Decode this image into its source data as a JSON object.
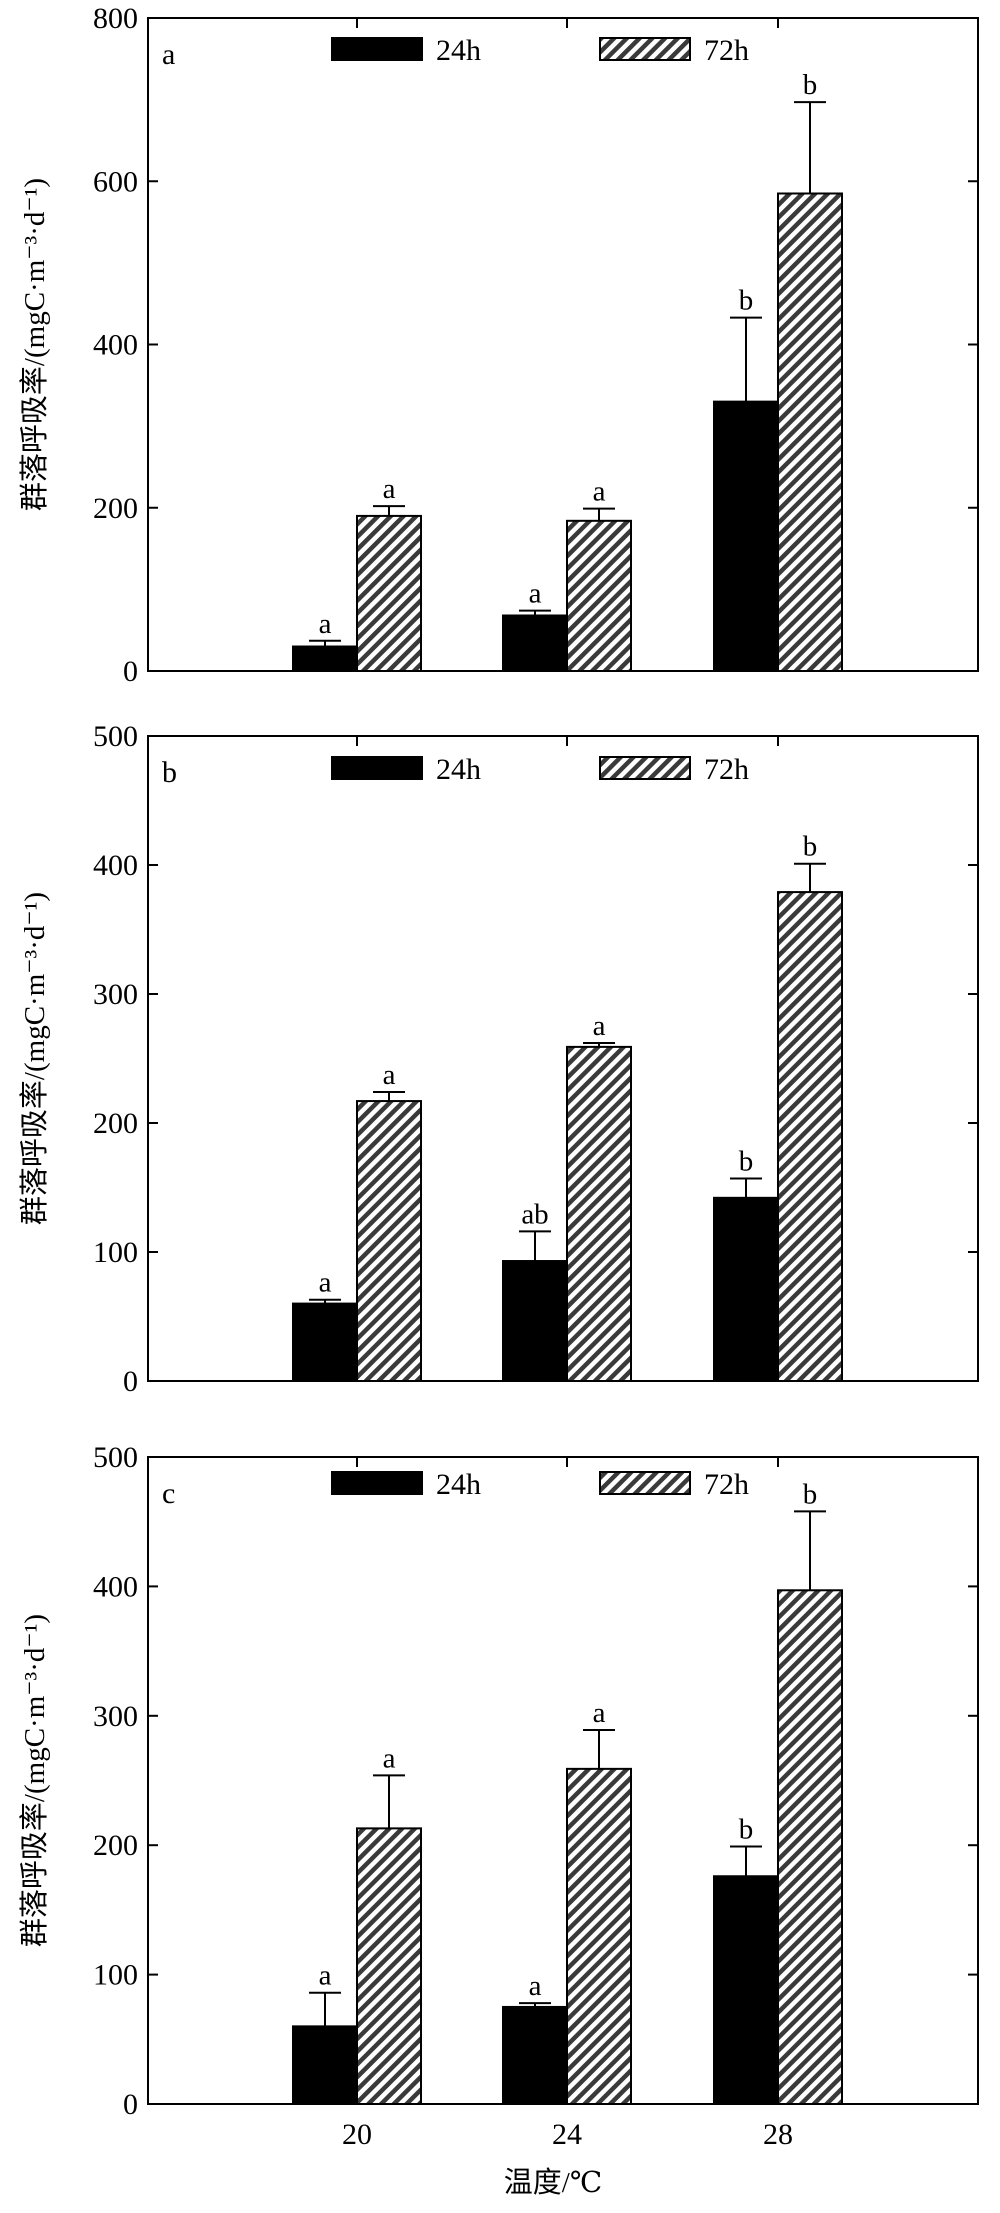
{
  "chart_data": [
    {
      "type": "bar",
      "panel_label": "a",
      "categories": [
        "20",
        "24",
        "28"
      ],
      "ylabel": "群落呼吸率/(mgC·m⁻³·d⁻¹)",
      "ylim": [
        0,
        800
      ],
      "yticks": [
        "0",
        "200",
        "400",
        "600",
        "800"
      ],
      "legend": "top",
      "grid": false,
      "series": [
        {
          "name": "24h",
          "color": "#000000",
          "pattern": "solid",
          "values": [
            30,
            68,
            330
          ],
          "errors": [
            7,
            6,
            103
          ],
          "sig_labels": [
            "a",
            "a",
            "b"
          ]
        },
        {
          "name": "72h",
          "color": "#c8c8c8",
          "pattern": "hatched",
          "values": [
            190,
            184,
            585
          ],
          "errors": [
            12,
            15,
            112
          ],
          "sig_labels": [
            "a",
            "a",
            "b"
          ]
        }
      ]
    },
    {
      "type": "bar",
      "panel_label": "b",
      "categories": [
        "20",
        "24",
        "28"
      ],
      "ylabel": "群落呼吸率/(mgC·m⁻³·d⁻¹)",
      "ylim": [
        0,
        500
      ],
      "yticks": [
        "0",
        "100",
        "200",
        "300",
        "400",
        "500"
      ],
      "legend": "top",
      "grid": false,
      "series": [
        {
          "name": "24h",
          "color": "#000000",
          "pattern": "solid",
          "values": [
            60,
            93,
            142
          ],
          "errors": [
            3,
            23,
            15
          ],
          "sig_labels": [
            "a",
            "ab",
            "b"
          ]
        },
        {
          "name": "72h",
          "color": "#c8c8c8",
          "pattern": "hatched",
          "values": [
            217,
            259,
            379
          ],
          "errors": [
            7,
            3,
            22
          ],
          "sig_labels": [
            "a",
            "a",
            "b"
          ]
        }
      ]
    },
    {
      "type": "bar",
      "panel_label": "c",
      "categories": [
        "20",
        "24",
        "28"
      ],
      "xticks": [
        "20",
        "24",
        "28"
      ],
      "xlabel": "温度/℃",
      "ylabel": "群落呼吸率/(mgC·m⁻³·d⁻¹)",
      "ylim": [
        0,
        500
      ],
      "yticks": [
        "0",
        "100",
        "200",
        "300",
        "400",
        "500"
      ],
      "legend": "top",
      "grid": false,
      "series": [
        {
          "name": "24h",
          "color": "#000000",
          "pattern": "solid",
          "values": [
            60,
            75,
            176
          ],
          "errors": [
            26,
            3,
            23
          ],
          "sig_labels": [
            "a",
            "a",
            "b"
          ]
        },
        {
          "name": "72h",
          "color": "#c8c8c8",
          "pattern": "hatched",
          "values": [
            213,
            259,
            397
          ],
          "errors": [
            41,
            30,
            61
          ],
          "sig_labels": [
            "a",
            "a",
            "b"
          ]
        }
      ]
    }
  ]
}
